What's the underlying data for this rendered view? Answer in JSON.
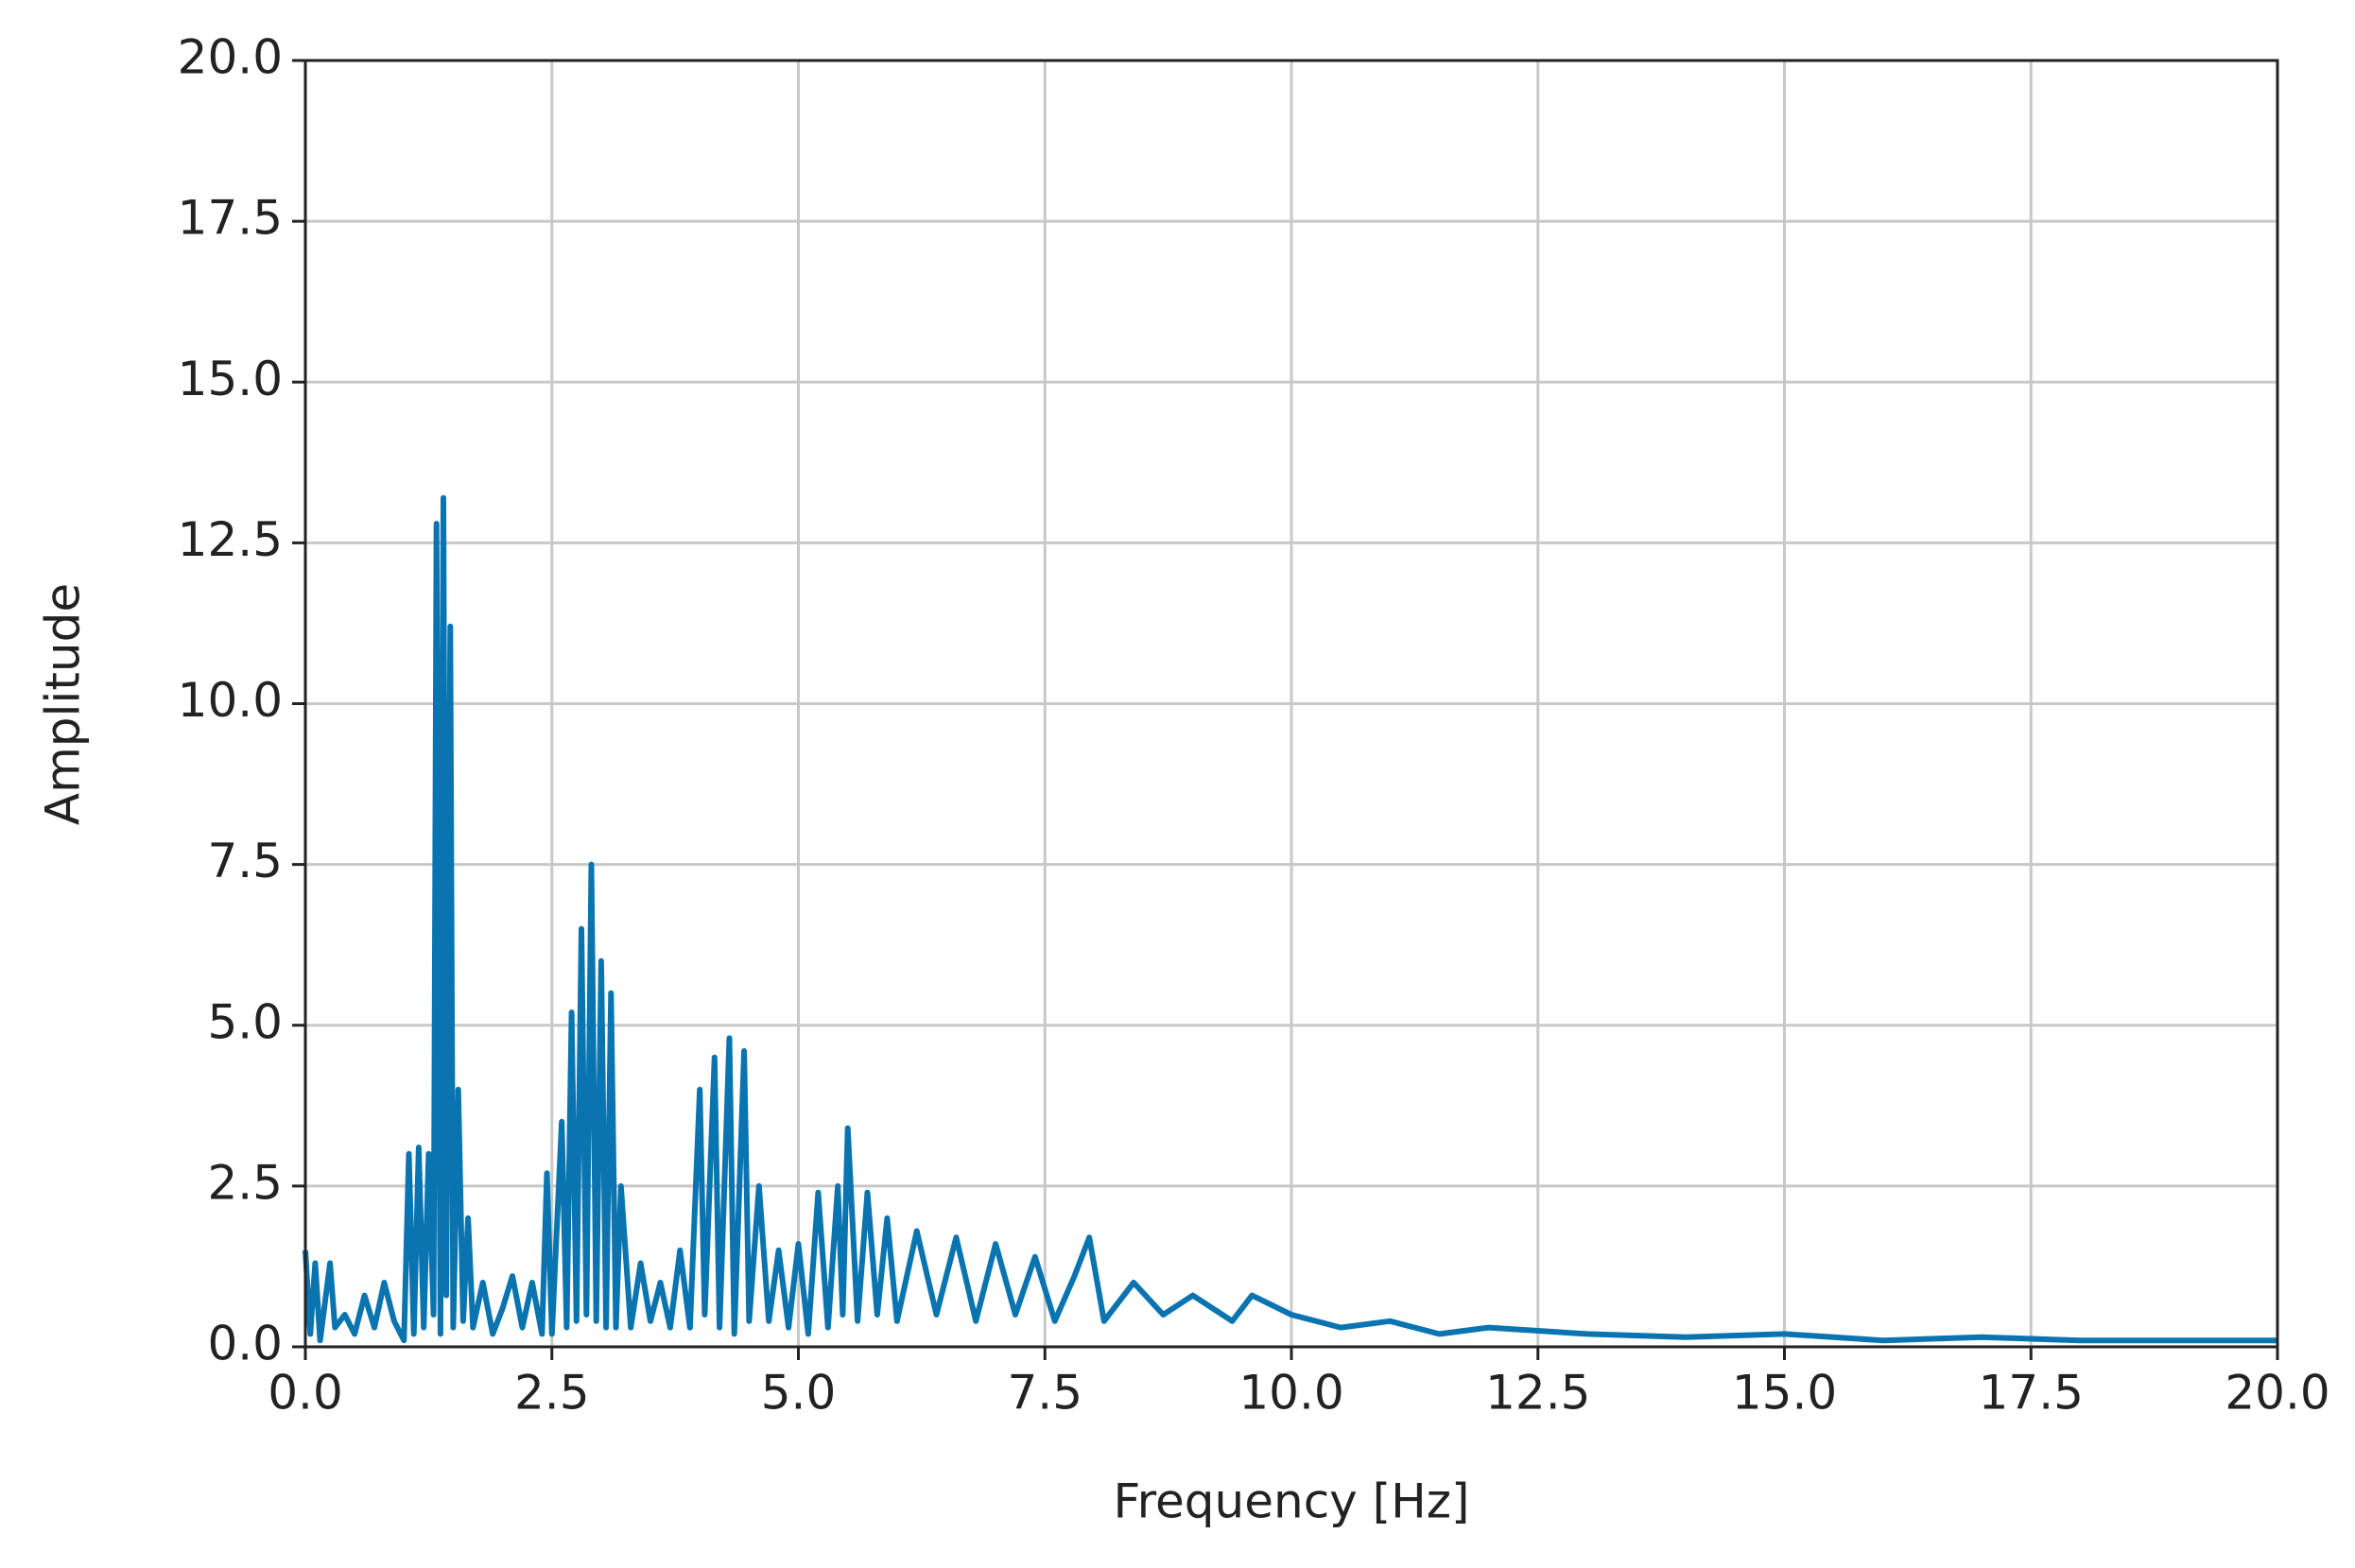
{
  "chart_data": {
    "type": "line",
    "x_label": "Frequency [Hz]",
    "y_label": "Amplitude",
    "color": "#0a74b0",
    "grid": true,
    "xlim": [
      0,
      20
    ],
    "ylim": [
      0,
      20
    ],
    "xticks": [
      {
        "value": 0,
        "label": "0.0"
      },
      2.5,
      {
        "value": 5,
        "label": "5.0"
      },
      7.5,
      {
        "value": 10,
        "label": "10.0"
      },
      12.5,
      {
        "value": 15,
        "label": "15.0"
      },
      17.5,
      {
        "value": 20,
        "label": "20.0"
      }
    ],
    "yticks": [
      {
        "value": 0,
        "label": "0.0"
      },
      2.5,
      {
        "value": 5,
        "label": "5.0"
      },
      7.5,
      {
        "value": 10,
        "label": "10.0"
      },
      12.5,
      {
        "value": 15,
        "label": "15.0"
      },
      17.5,
      {
        "value": 20,
        "label": "20.0"
      }
    ],
    "x": [
      0,
      0.05,
      0.1,
      0.15,
      0.25,
      0.3,
      0.4,
      0.5,
      0.6,
      0.7,
      0.8,
      0.9,
      1.0,
      1.05,
      1.1,
      1.15,
      1.2,
      1.25,
      1.3,
      1.33,
      1.37,
      1.4,
      1.43,
      1.47,
      1.5,
      1.55,
      1.6,
      1.65,
      1.7,
      1.8,
      1.9,
      2.0,
      2.1,
      2.2,
      2.3,
      2.4,
      2.45,
      2.5,
      2.6,
      2.65,
      2.7,
      2.75,
      2.8,
      2.85,
      2.9,
      2.95,
      3.0,
      3.05,
      3.1,
      3.15,
      3.2,
      3.3,
      3.4,
      3.5,
      3.6,
      3.7,
      3.8,
      3.9,
      4.0,
      4.05,
      4.15,
      4.2,
      4.3,
      4.35,
      4.45,
      4.5,
      4.6,
      4.7,
      4.8,
      4.9,
      5.0,
      5.1,
      5.2,
      5.3,
      5.4,
      5.45,
      5.5,
      5.6,
      5.7,
      5.8,
      5.9,
      6.0,
      6.2,
      6.4,
      6.6,
      6.8,
      7.0,
      7.2,
      7.4,
      7.6,
      7.8,
      7.95,
      8.1,
      8.4,
      8.7,
      9.0,
      9.4,
      9.6,
      10.0,
      10.5,
      11.0,
      11.5,
      12.0,
      13.0,
      14.0,
      15.0,
      16.0,
      17.0,
      18.0,
      19.0,
      20.0
    ],
    "values": [
      1.5,
      0.2,
      1.3,
      0.1,
      1.3,
      0.3,
      0.5,
      0.2,
      0.8,
      0.3,
      1.0,
      0.4,
      0.1,
      3.0,
      0.2,
      3.1,
      0.3,
      3.0,
      0.5,
      12.8,
      0.2,
      13.2,
      0.8,
      11.2,
      0.3,
      4.0,
      0.4,
      2.0,
      0.3,
      1.0,
      0.2,
      0.6,
      1.1,
      0.3,
      1.0,
      0.2,
      2.7,
      0.2,
      3.5,
      0.3,
      5.2,
      0.4,
      6.5,
      0.5,
      7.5,
      0.4,
      6.0,
      0.3,
      5.5,
      0.3,
      2.5,
      0.3,
      1.3,
      0.4,
      1.0,
      0.3,
      1.5,
      0.3,
      4.0,
      0.5,
      4.5,
      0.3,
      4.8,
      0.2,
      4.6,
      0.4,
      2.5,
      0.4,
      1.5,
      0.3,
      1.6,
      0.2,
      2.4,
      0.3,
      2.5,
      0.5,
      3.4,
      0.4,
      2.4,
      0.5,
      2.0,
      0.4,
      1.8,
      0.5,
      1.7,
      0.4,
      1.6,
      0.5,
      1.4,
      0.4,
      1.1,
      1.7,
      0.4,
      1.0,
      0.5,
      0.8,
      0.4,
      0.8,
      0.5,
      0.3,
      0.4,
      0.2,
      0.3,
      0.2,
      0.15,
      0.2,
      0.1,
      0.15,
      0.1,
      0.1,
      0.1
    ]
  }
}
